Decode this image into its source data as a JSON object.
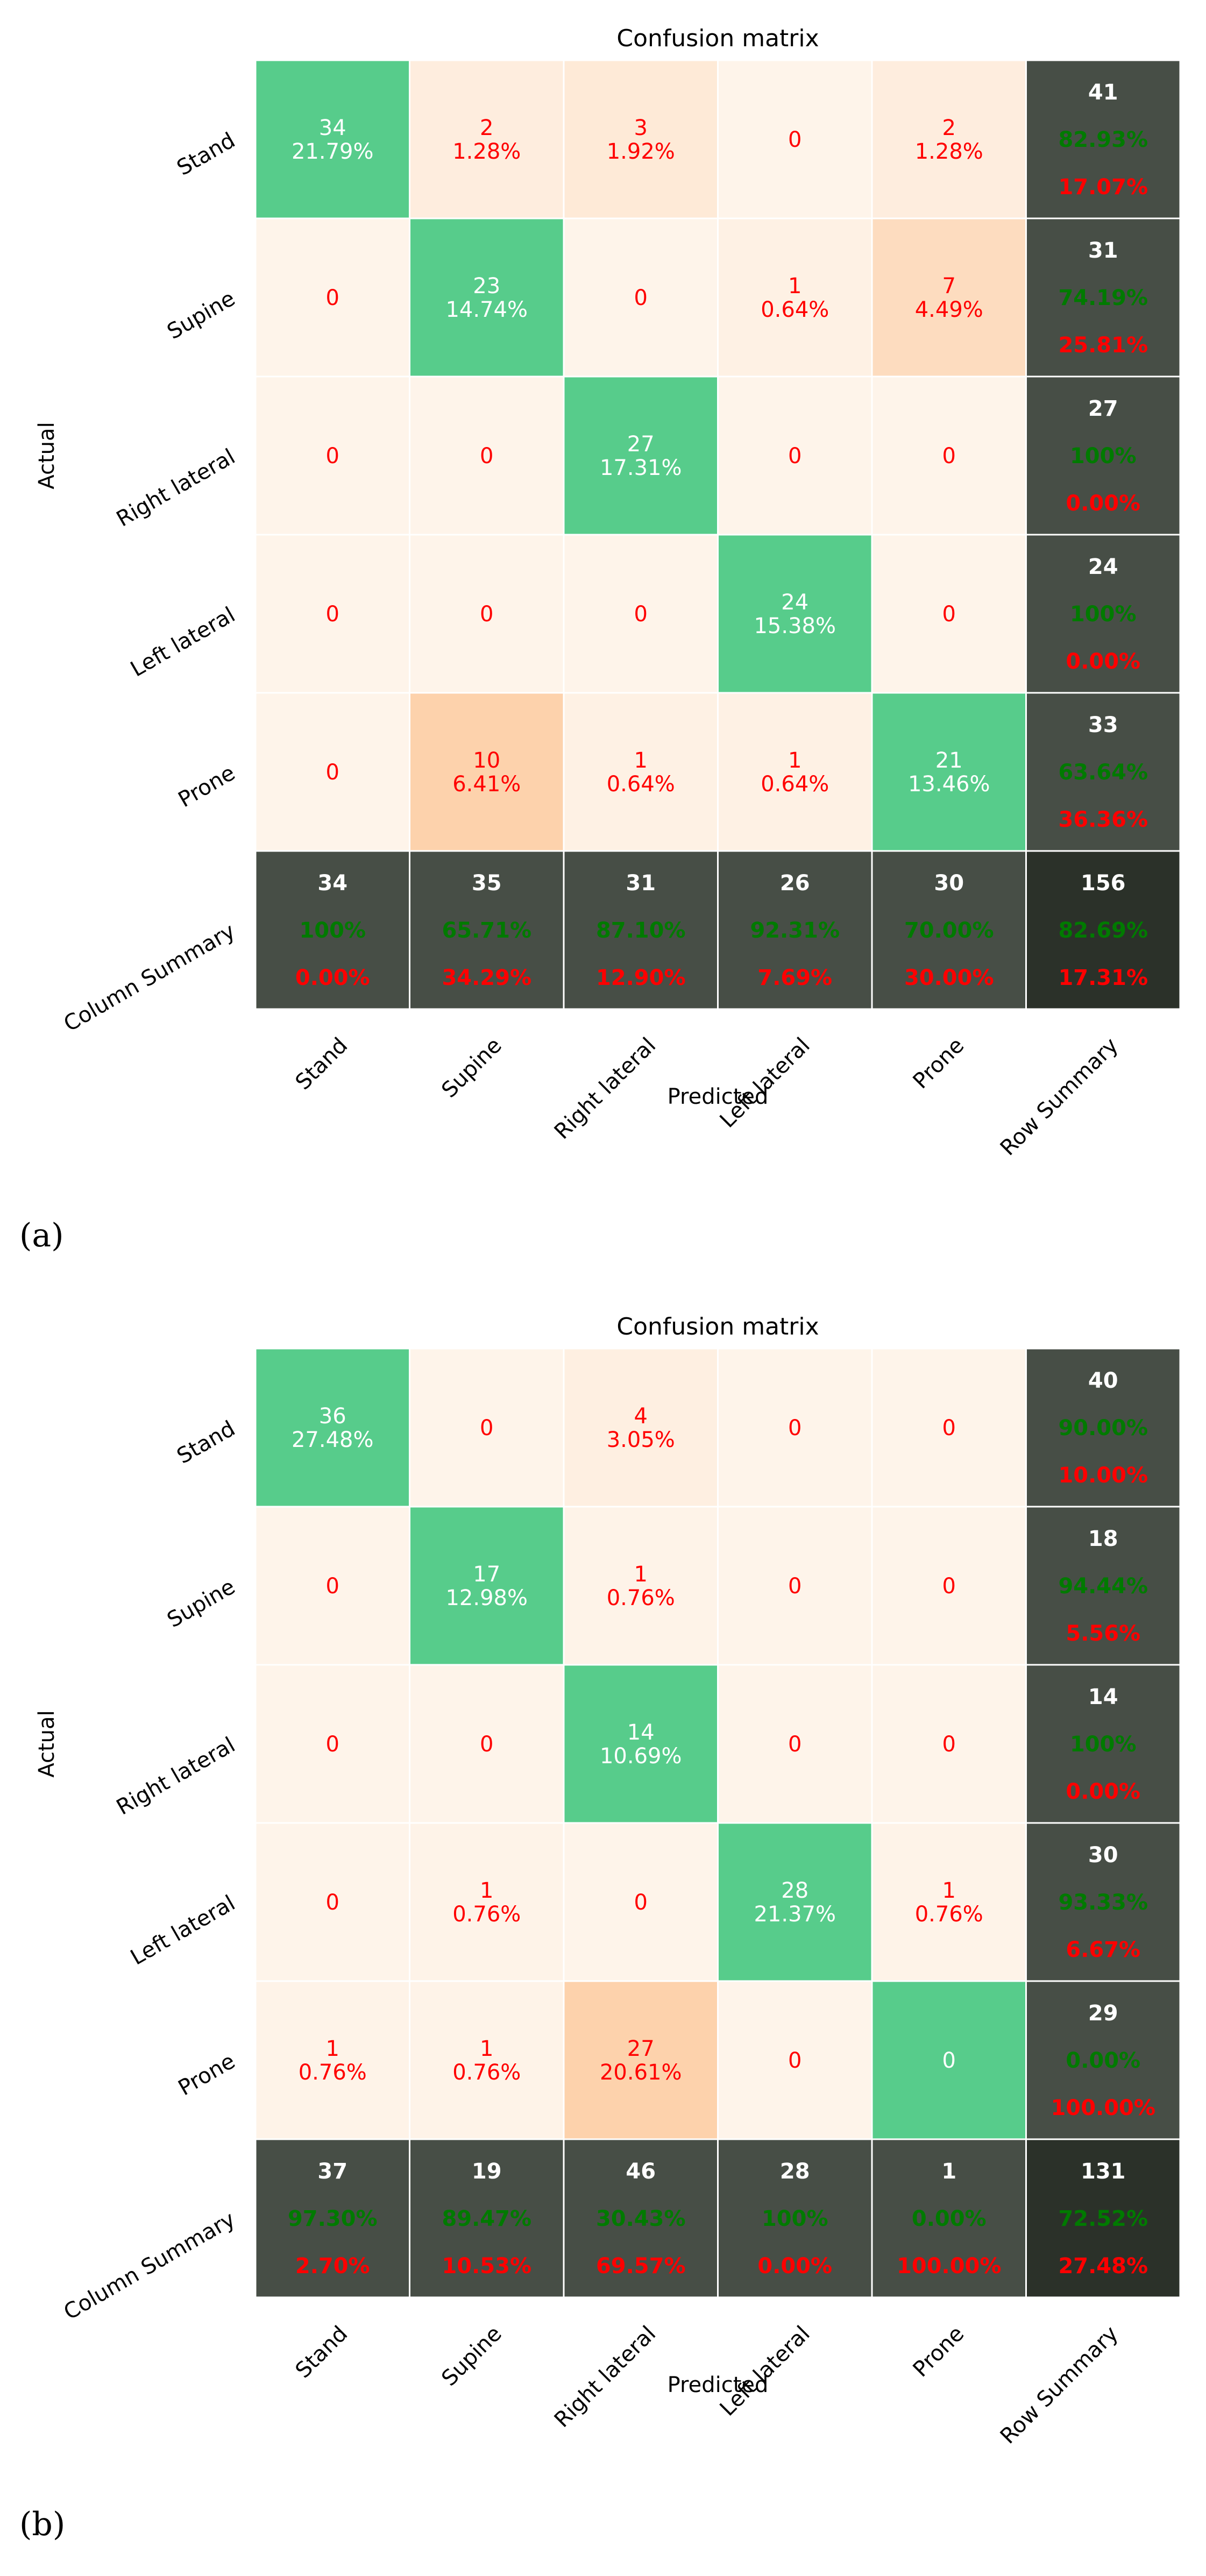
{
  "chart_data": [
    {
      "type": "heatmap",
      "panel_label": "(a)",
      "title": "Confusion matrix",
      "xlabel": "Predicted",
      "ylabel": "Actual",
      "row_labels": [
        "Stand",
        "Supine",
        "Right lateral",
        "Left lateral",
        "Prone",
        "Column Summary"
      ],
      "col_labels": [
        "Stand",
        "Supine",
        "Right lateral",
        "Left lateral",
        "Prone",
        "Row Summary"
      ],
      "cells": [
        [
          [
            "34",
            "21.79%"
          ],
          [
            "2",
            "1.28%"
          ],
          [
            "3",
            "1.92%"
          ],
          [
            "0"
          ],
          [
            "2",
            "1.28%"
          ]
        ],
        [
          [
            "0"
          ],
          [
            "23",
            "14.74%"
          ],
          [
            "0"
          ],
          [
            "1",
            "0.64%"
          ],
          [
            "7",
            "4.49%"
          ]
        ],
        [
          [
            "0"
          ],
          [
            "0"
          ],
          [
            "27",
            "17.31%"
          ],
          [
            "0"
          ],
          [
            "0"
          ]
        ],
        [
          [
            "0"
          ],
          [
            "0"
          ],
          [
            "0"
          ],
          [
            "24",
            "15.38%"
          ],
          [
            "0"
          ]
        ],
        [
          [
            "0"
          ],
          [
            "10",
            "6.41%"
          ],
          [
            "1",
            "0.64%"
          ],
          [
            "1",
            "0.64%"
          ],
          [
            "21",
            "13.46%"
          ]
        ]
      ],
      "counts": [
        [
          34,
          2,
          3,
          0,
          2
        ],
        [
          0,
          23,
          0,
          1,
          7
        ],
        [
          0,
          0,
          27,
          0,
          0
        ],
        [
          0,
          0,
          0,
          24,
          0
        ],
        [
          0,
          10,
          1,
          1,
          21
        ]
      ],
      "row_summary": [
        [
          "41",
          "82.93%",
          "17.07%"
        ],
        [
          "31",
          "74.19%",
          "25.81%"
        ],
        [
          "27",
          "100%",
          "0.00%"
        ],
        [
          "24",
          "100%",
          "0.00%"
        ],
        [
          "33",
          "63.64%",
          "36.36%"
        ]
      ],
      "col_summary": [
        [
          "34",
          "100%",
          "0.00%"
        ],
        [
          "35",
          "65.71%",
          "34.29%"
        ],
        [
          "31",
          "87.10%",
          "12.90%"
        ],
        [
          "26",
          "92.31%",
          "7.69%"
        ],
        [
          "30",
          "70.00%",
          "30.00%"
        ]
      ],
      "total": [
        "156",
        "82.69%",
        "17.31%"
      ]
    },
    {
      "type": "heatmap",
      "panel_label": "(b)",
      "title": "Confusion matrix",
      "xlabel": "Predicted",
      "ylabel": "Actual",
      "row_labels": [
        "Stand",
        "Supine",
        "Right lateral",
        "Left lateral",
        "Prone",
        "Column Summary"
      ],
      "col_labels": [
        "Stand",
        "Supine",
        "Right lateral",
        "Left lateral",
        "Prone",
        "Row Summary"
      ],
      "cells": [
        [
          [
            "36",
            "27.48%"
          ],
          [
            "0"
          ],
          [
            "4",
            "3.05%"
          ],
          [
            "0"
          ],
          [
            "0"
          ]
        ],
        [
          [
            "0"
          ],
          [
            "17",
            "12.98%"
          ],
          [
            "1",
            "0.76%"
          ],
          [
            "0"
          ],
          [
            "0"
          ]
        ],
        [
          [
            "0"
          ],
          [
            "0"
          ],
          [
            "14",
            "10.69%"
          ],
          [
            "0"
          ],
          [
            "0"
          ]
        ],
        [
          [
            "0"
          ],
          [
            "1",
            "0.76%"
          ],
          [
            "0"
          ],
          [
            "28",
            "21.37%"
          ],
          [
            "1",
            "0.76%"
          ]
        ],
        [
          [
            "1",
            "0.76%"
          ],
          [
            "1",
            "0.76%"
          ],
          [
            "27",
            "20.61%"
          ],
          [
            "0"
          ],
          [
            "0"
          ]
        ]
      ],
      "counts": [
        [
          36,
          0,
          4,
          0,
          0
        ],
        [
          0,
          17,
          1,
          0,
          0
        ],
        [
          0,
          0,
          14,
          0,
          0
        ],
        [
          0,
          1,
          0,
          28,
          1
        ],
        [
          1,
          1,
          27,
          0,
          0
        ]
      ],
      "row_summary": [
        [
          "40",
          "90.00%",
          "10.00%"
        ],
        [
          "18",
          "94.44%",
          "5.56%"
        ],
        [
          "14",
          "100%",
          "0.00%"
        ],
        [
          "30",
          "93.33%",
          "6.67%"
        ],
        [
          "29",
          "0.00%",
          "100.00%"
        ]
      ],
      "col_summary": [
        [
          "37",
          "97.30%",
          "2.70%"
        ],
        [
          "19",
          "89.47%",
          "10.53%"
        ],
        [
          "46",
          "30.43%",
          "69.57%"
        ],
        [
          "28",
          "100%",
          "0.00%"
        ],
        [
          "1",
          "0.00%",
          "100.00%"
        ]
      ],
      "total": [
        "131",
        "72.52%",
        "27.48%"
      ]
    }
  ],
  "colors": {
    "diagonal": "#57cc8b",
    "off_diagonal_base": "#fef4ea",
    "off_diagonal_peak": "#fdd2ac",
    "summary": "#474e46",
    "total": "#2b3129",
    "text_red": "#ff0000",
    "text_green": "#007a00",
    "text_white": "#ffffff"
  }
}
